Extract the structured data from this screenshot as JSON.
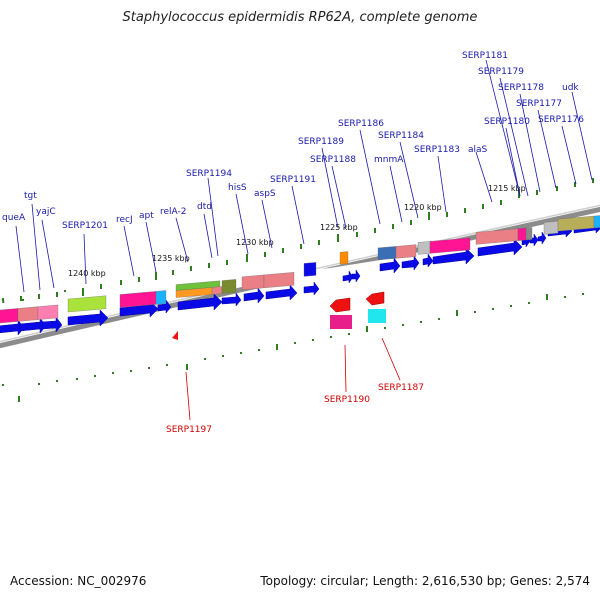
{
  "title": "Staphylococcus epidermidis RP62A, complete genome",
  "footer": {
    "accession": "Accession: NC_002976",
    "summary": "Topology: circular; Length: 2,616,530 bp; Genes: 2,574"
  },
  "kbp_ticks": [
    {
      "label": "1240 kbp"
    },
    {
      "label": "1235 kbp"
    },
    {
      "label": "1230 kbp"
    },
    {
      "label": "1225 kbp"
    },
    {
      "label": "1220 kbp"
    },
    {
      "label": "1215 kbp"
    }
  ],
  "forward_genes": [
    {
      "label": "queA"
    },
    {
      "label": "tgt"
    },
    {
      "label": "yajC"
    },
    {
      "label": "SERP1201"
    },
    {
      "label": "recJ"
    },
    {
      "label": "apt"
    },
    {
      "label": "relA-2"
    },
    {
      "label": "dtd"
    },
    {
      "label": "SERP1194"
    },
    {
      "label": "hisS"
    },
    {
      "label": "aspS"
    },
    {
      "label": "SERP1191"
    },
    {
      "label": "SERP1189"
    },
    {
      "label": "SERP1188"
    },
    {
      "label": "SERP1186"
    },
    {
      "label": "mnmA"
    },
    {
      "label": "SERP1184"
    },
    {
      "label": "SERP1183"
    },
    {
      "label": "alaS"
    },
    {
      "label": "SERP1181"
    },
    {
      "label": "SERP1179"
    },
    {
      "label": "SERP1178"
    },
    {
      "label": "SERP1180"
    },
    {
      "label": "SERP1177"
    },
    {
      "label": "SERP1176"
    },
    {
      "label": "udk"
    }
  ],
  "reverse_genes": [
    {
      "label": "SERP1197"
    },
    {
      "label": "SERP1190"
    },
    {
      "label": "SERP1187"
    }
  ],
  "colors": {
    "forward_label": "#1a1aa8",
    "reverse_label": "#cc0000",
    "arrow": "#0a0ae6",
    "tick": "#2e7d1e",
    "backbone": "#8c8c8c"
  }
}
